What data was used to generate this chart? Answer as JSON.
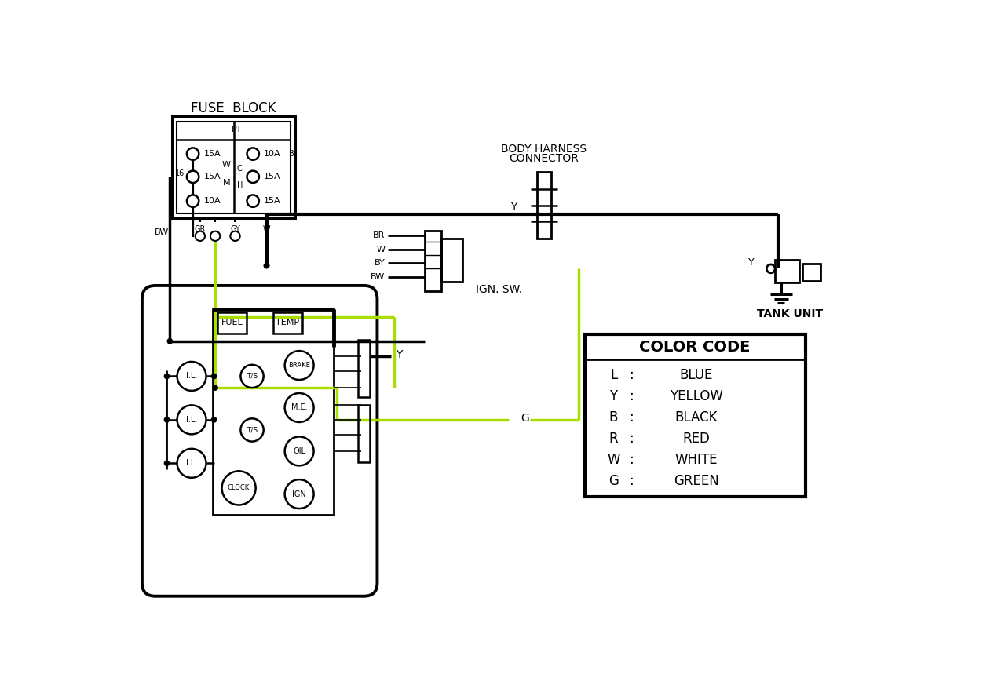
{
  "bg": "#ffffff",
  "lc": "#000000",
  "gc": "#aadd00",
  "fuse_block_label": "FUSE  BLOCK",
  "body_harness_1": "BODY HARNESS",
  "body_harness_2": "CONNECTOR",
  "ign_sw_label": "IGN. SW.",
  "tank_unit_label": "TANK UNIT",
  "color_code_title": "COLOR CODE",
  "color_items": [
    [
      "L",
      "BLUE"
    ],
    [
      "Y",
      "YELLOW"
    ],
    [
      "B",
      "BLACK"
    ],
    [
      "R",
      "RED"
    ],
    [
      "W",
      "WHITE"
    ],
    [
      "G",
      "GREEN"
    ]
  ],
  "fuse_left_labels": [
    "15A",
    "15A",
    "10A"
  ],
  "fuse_right_labels": [
    "10A",
    "15A",
    "15A"
  ],
  "wire_labels_bottom": [
    "GR",
    "L",
    "GY",
    "W"
  ],
  "ign_wire_labels": [
    "BR",
    "W",
    "BY",
    "BW"
  ]
}
